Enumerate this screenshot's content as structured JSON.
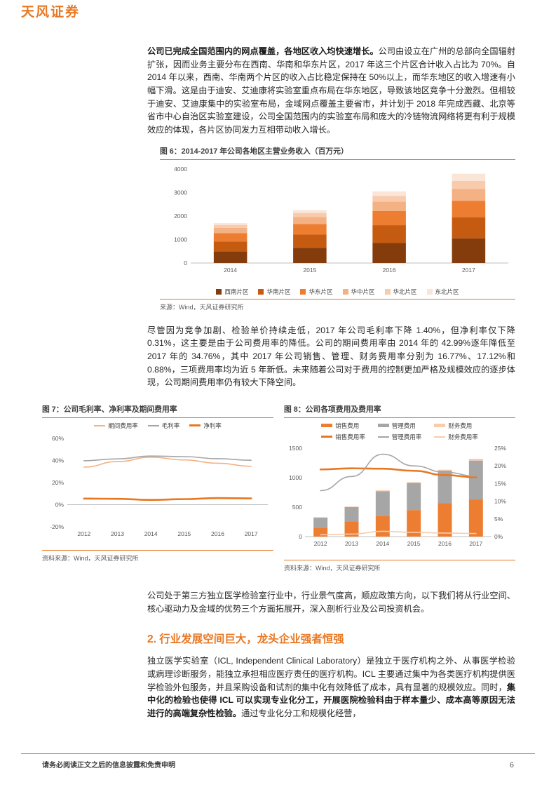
{
  "header": {
    "logo_text": "天风证券"
  },
  "paragraphs": {
    "p1_lead": "公司已完成全国范围内的网点覆盖，各地区收入均快速增长。",
    "p1_rest": "公司由设立在广州的总部向全国辐射扩张，因而业务主要分布在西南、华南和华东片区，2017 年这三个片区合计收入占比为 70%。自 2014 年以来，西南、华南两个片区的收入占比稳定保持在 50%以上，而华东地区的收入增速有小幅下滑。这是由于迪安、艾迪康将实验室重点布局在华东地区，导致该地区竞争十分激烈。但相较于迪安、艾迪康集中的实验室布局，金域网点覆盖主要省市，并计划于 2018 年完成西藏、北京等省市中心自治区实验室建设，公司全国范围内的实验室布局和庞大的冷链物流网络将更有利于规模效应的体现，各片区协同发力互相带动收入增长。",
    "p2": "尽管因为竞争加剧、检验单价持续走低，2017 年公司毛利率下降 1.40%，但净利率仅下降 0.31%，这主要是由于公司费用率的降低。公司的期间费用率由 2014 年的 42.99%逐年降低至 2017 年的 34.76%，其中 2017 年公司销售、管理、财务费用率分别为 16.77%、17.12%和 0.88%，三项费用率均为近 5 年新低。未来随着公司对于费用的控制更加严格及规模效应的逐步体现，公司期间费用率仍有较大下降空间。",
    "p3": "公司处于第三方独立医学检验室行业中，行业景气度高，顺应政策方向，以下我们将从行业空间、核心驱动力及金域的优势三个方面拓展开，深入剖析行业及公司投资机会。",
    "p4_before": "独立医学实验室（ICL, Independent Clinical Laboratory）是独立于医疗机构之外、从事医学检验或病理诊断服务，能独立承担相应医疗责任的医疗机构。ICL 主要通过集中为各类医疗机构提供医学检验外包服务，并且采购设备和试剂的集中化有效降低了成本，具有显著的规模效应。同时，",
    "p4_bold": "集中化的检验也使得 ICL 可以实现专业化分工，开展医院检验科由于样本量少、成本高等原因无法进行的高端复杂性检验。",
    "p4_after": "通过专业化分工和规模化经营，"
  },
  "section2": {
    "heading": "2. 行业发展空间巨大，龙头企业强者恒强"
  },
  "figures": {
    "fig6": {
      "title": "图 6：2014-2017 年公司各地区主营业务收入（百万元）",
      "source": "来源：Wind，天风证券研究所"
    },
    "fig7": {
      "title": "图 7：公司毛利率、净利率及期间费用率",
      "source": "资料来源：Wind，天风证券研究所"
    },
    "fig8": {
      "title": "图 8：公司各项费用及费用率",
      "source": "资料来源：Wind，天风证券研究所"
    }
  },
  "footer": {
    "disclaimer": "请务必阅读正文之后的信息披露和免责申明",
    "page_number": "6"
  },
  "colors": {
    "accent": "#E87722",
    "gray_series": "#A6A6A6"
  },
  "chart_data": [
    {
      "id": "fig6",
      "type": "bar",
      "stacked": true,
      "title": "2014-2017 年公司各地区主营业务收入（百万元）",
      "categories": [
        "2014",
        "2015",
        "2016",
        "2017"
      ],
      "series": [
        {
          "name": "西南片区",
          "color": "#843C0C",
          "values": [
            500,
            650,
            850,
            1050
          ]
        },
        {
          "name": "华南片区",
          "color": "#C55A11",
          "values": [
            420,
            560,
            760,
            900
          ]
        },
        {
          "name": "华东片区",
          "color": "#ED7D31",
          "values": [
            350,
            450,
            600,
            700
          ]
        },
        {
          "name": "华中片区",
          "color": "#F4B183",
          "values": [
            230,
            300,
            400,
            500
          ]
        },
        {
          "name": "华北片区",
          "color": "#F8CBAD",
          "values": [
            120,
            170,
            250,
            350
          ]
        },
        {
          "name": "东北片区",
          "color": "#FBE5D6",
          "values": [
            80,
            120,
            190,
            300
          ]
        }
      ],
      "ylim": [
        0,
        4000
      ],
      "yticks": [
        0,
        1000,
        2000,
        3000,
        4000
      ],
      "grid": false,
      "legend_position": "bottom"
    },
    {
      "id": "fig7",
      "type": "line",
      "title": "公司毛利率、净利率及期间费用率",
      "x": [
        "2012",
        "2013",
        "2014",
        "2015",
        "2016",
        "2017"
      ],
      "series": [
        {
          "name": "期间费用率",
          "color": "#F4B183",
          "width": 1.6,
          "values": [
            34.0,
            39.0,
            42.99,
            40.5,
            37.5,
            34.76
          ]
        },
        {
          "name": "毛利率",
          "color": "#A6A6A6",
          "width": 1.6,
          "values": [
            39.8,
            41.5,
            44.0,
            43.5,
            41.6,
            40.2
          ]
        },
        {
          "name": "净利率",
          "color": "#E87722",
          "width": 2.6,
          "values": [
            5.5,
            5.3,
            4.3,
            5.0,
            6.0,
            5.7
          ]
        }
      ],
      "ylim": [
        -20,
        60
      ],
      "yticks": [
        -20,
        0,
        20,
        40,
        60
      ],
      "ytick_format": "percent",
      "grid": false,
      "legend_position": "top"
    },
    {
      "id": "fig8",
      "type": "combo",
      "title": "公司各项费用及费用率",
      "categories": [
        "2012",
        "2013",
        "2014",
        "2015",
        "2016",
        "2017"
      ],
      "bar_series": [
        {
          "name": "销售费用",
          "color": "#ED7D31",
          "values": [
            150,
            260,
            350,
            450,
            570,
            630
          ]
        },
        {
          "name": "管理费用",
          "color": "#A6A6A6",
          "values": [
            170,
            240,
            420,
            460,
            550,
            660
          ]
        },
        {
          "name": "财务费用",
          "color": "#F8CBAD",
          "values": [
            10,
            10,
            15,
            15,
            15,
            30
          ]
        }
      ],
      "line_series": [
        {
          "name": "销售费用率",
          "color": "#E87722",
          "width": 2.6,
          "values": [
            19.0,
            19.3,
            19.2,
            18.6,
            17.4,
            16.77
          ]
        },
        {
          "name": "管理费用率",
          "color": "#A6A6A6",
          "width": 1.6,
          "values": [
            13.0,
            17.0,
            23.3,
            20.0,
            18.2,
            17.12
          ]
        },
        {
          "name": "财务费用率",
          "color": "#F8CBAD",
          "width": 1.6,
          "values": [
            0.5,
            0.7,
            1.5,
            1.2,
            1.0,
            0.88
          ]
        }
      ],
      "ylim_left": [
        0,
        1500
      ],
      "yticks_left": [
        0,
        500,
        1000,
        1500
      ],
      "ylim_right": [
        0,
        25
      ],
      "yticks_right": [
        0,
        5,
        10,
        15,
        20,
        25
      ],
      "grid": false,
      "legend_position": "top"
    }
  ]
}
